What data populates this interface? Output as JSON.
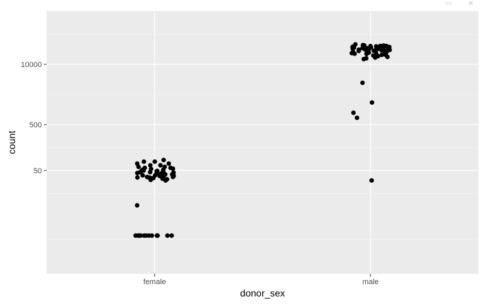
{
  "chart_data": {
    "type": "scatter",
    "title": "",
    "xlabel": "donor_sex",
    "ylabel": "count",
    "y_scale": "log10 (transformed)",
    "categories": [
      "female",
      "male"
    ],
    "y_ticks": [
      {
        "value": 50,
        "label": "50"
      },
      {
        "value": 500,
        "label": "500"
      },
      {
        "value": 10000,
        "label": "10000"
      }
    ],
    "grid": true,
    "legend": "none",
    "colors": {
      "panel": "#ebebeb",
      "grid_major": "#ffffff",
      "grid_minor": "#f5f5f5",
      "points": "#000000",
      "text": "#4d4d4d",
      "axis_title": "#000000"
    },
    "series": [
      {
        "category": "female",
        "values": [
          85,
          78,
          78,
          71,
          71,
          65,
          65,
          60,
          60,
          57,
          57,
          55,
          54,
          52,
          52,
          50,
          49,
          49,
          48,
          48,
          46,
          46,
          45,
          45,
          44,
          43,
          43,
          42,
          41,
          41,
          40,
          40,
          39,
          39,
          38,
          38,
          37,
          37,
          36,
          36,
          35,
          35,
          34,
          34,
          33,
          32,
          31,
          30,
          8,
          1,
          1,
          1,
          1,
          1,
          1,
          1,
          1,
          1,
          1,
          1,
          1,
          1,
          1
        ]
      },
      {
        "category": "male",
        "values": [
          27000,
          26000,
          25800,
          25500,
          25000,
          25000,
          24800,
          24500,
          24500,
          24000,
          24000,
          23800,
          23500,
          23500,
          23000,
          23000,
          22800,
          22500,
          22500,
          22000,
          22000,
          22000,
          21800,
          21500,
          21500,
          21000,
          21000,
          20800,
          20500,
          20500,
          20000,
          20000,
          19800,
          19500,
          19500,
          19000,
          19000,
          18800,
          18500,
          18000,
          18000,
          17800,
          17500,
          17000,
          17000,
          16800,
          16500,
          16000,
          16000,
          15500,
          15000,
          14500,
          14000,
          13500,
          13000,
          4000,
          1500,
          900,
          700,
          30
        ]
      }
    ]
  },
  "window_controls": {
    "icons": [
      "restore-icon",
      "close-icon"
    ],
    "text": "▭ ✕"
  }
}
